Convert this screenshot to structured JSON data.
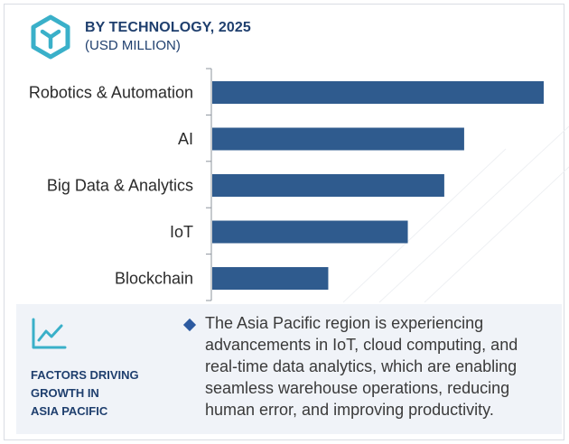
{
  "header": {
    "title": "BY TECHNOLOGY, 2025",
    "subtitle": "(USD MILLION)"
  },
  "chart_data": {
    "type": "bar",
    "orientation": "horizontal",
    "categories": [
      "Robotics & Automation",
      "AI",
      "Big Data & Analytics",
      "IoT",
      "Blockchain"
    ],
    "values": [
      100,
      76,
      70,
      59,
      35
    ],
    "xlim": [
      0,
      100
    ],
    "title": "BY TECHNOLOGY, 2025",
    "subtitle": "(USD MILLION)",
    "grid": false,
    "bar_color": "#2f5b8e"
  },
  "factors": {
    "title_lines": [
      "FACTORS DRIVING",
      "GROWTH IN",
      "ASIA PACIFIC"
    ],
    "text": "The Asia Pacific region is experiencing advancements in IoT, cloud computing, and real-time data analytics, which are enabling seamless warehouse operations, reducing human error, and improving productivity."
  },
  "icons": {
    "header": "cube-hexagon-icon",
    "factors": "trend-line-icon"
  },
  "colors": {
    "accent": "#3ab0c9",
    "navy": "#1f3f6e",
    "bar": "#2f5b8e"
  }
}
